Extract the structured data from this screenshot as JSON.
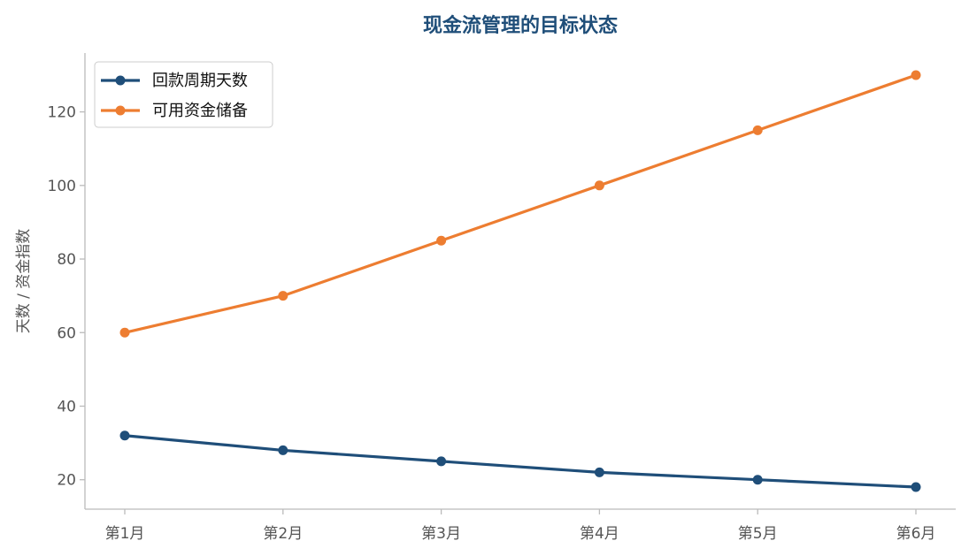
{
  "chart_data": {
    "type": "line",
    "title": "现金流管理的目标状态",
    "xlabel": "",
    "ylabel": "天数 / 资金指数",
    "categories": [
      "第1月",
      "第2月",
      "第3月",
      "第4月",
      "第5月",
      "第6月"
    ],
    "ylim": [
      12,
      136
    ],
    "yticks": [
      20,
      40,
      60,
      80,
      100,
      120
    ],
    "grid": false,
    "legend_position": "top-left",
    "series": [
      {
        "name": "回款周期天数",
        "color": "#1f4e79",
        "values": [
          32,
          28,
          25,
          22,
          20,
          18
        ]
      },
      {
        "name": "可用资金储备",
        "color": "#ed7d31",
        "values": [
          60,
          70,
          85,
          100,
          115,
          130
        ]
      }
    ]
  }
}
